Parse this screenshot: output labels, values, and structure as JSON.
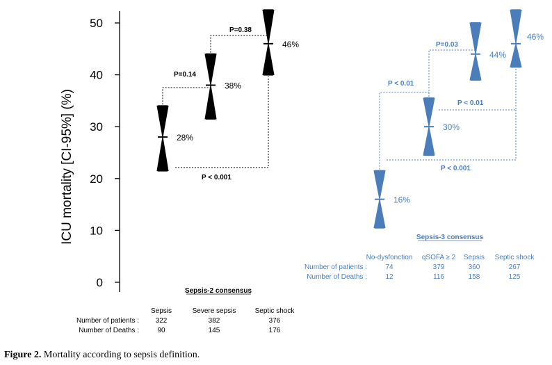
{
  "chart_data": {
    "type": "interval",
    "ylabel": "ICU mortality [CI-95%] (%)",
    "ylim": [
      0,
      50
    ],
    "yticks": [
      0,
      10,
      20,
      30,
      40,
      50
    ],
    "panels": [
      {
        "title": "Sepsis-2 consensus",
        "color": "#000000",
        "table_row_labels": [
          "Number of patients :",
          "Number of Deaths :"
        ],
        "groups": [
          {
            "name": "Sepsis",
            "point": 28,
            "label": "28%",
            "ci": [
              21.5,
              34
            ],
            "patients": "322",
            "deaths": "90"
          },
          {
            "name": "Severe sepsis",
            "point": 38,
            "label": "38%",
            "ci": [
              31.5,
              44
            ],
            "patients": "382",
            "deaths": "145"
          },
          {
            "name": "Septic shock",
            "point": 46,
            "label": "46%",
            "ci": [
              40,
              52.5
            ],
            "patients": "376",
            "deaths": "176"
          }
        ],
        "comparisons": [
          {
            "text": "P=0.14",
            "from": "Sepsis",
            "to": "Severe sepsis"
          },
          {
            "text": "P=0.38",
            "from": "Severe sepsis",
            "to": "Septic shock"
          },
          {
            "text": "P < 0.001",
            "from": "Sepsis",
            "to": "Septic shock"
          }
        ]
      },
      {
        "title": "Sepsis-3 consensus",
        "color": "#4A7DBA",
        "table_row_labels": [
          "Number of patients :",
          "Number of Deaths :"
        ],
        "groups": [
          {
            "name": "No-dysfonction",
            "point": 16,
            "label": "16%",
            "ci": [
              10.5,
              21.5
            ],
            "patients": "74",
            "deaths": "12"
          },
          {
            "name": "qSOFA ≥ 2",
            "point": 30,
            "label": "30%",
            "ci": [
              24.5,
              35.5
            ],
            "patients": "379",
            "deaths": "116"
          },
          {
            "name": "Sepsis",
            "point": 44,
            "label": "44%",
            "ci": [
              39,
              50
            ],
            "patients": "360",
            "deaths": "158"
          },
          {
            "name": "Septic shock",
            "point": 46,
            "label": "46%",
            "ci": [
              41.5,
              52.5
            ],
            "patients": "267",
            "deaths": "125"
          }
        ],
        "comparisons": [
          {
            "text": "P < 0.01",
            "from": "No-dysfonction",
            "to": "qSOFA ≥ 2"
          },
          {
            "text": "P=0.03",
            "from": "qSOFA ≥ 2",
            "to": "Sepsis"
          },
          {
            "text": "P < 0.01",
            "from": "qSOFA ≥ 2",
            "to": "Septic shock"
          },
          {
            "text": "P < 0.001",
            "from": "No-dysfonction",
            "to": "Septic shock"
          }
        ]
      }
    ]
  },
  "caption": {
    "label": "Figure 2.",
    "text": "Mortality according to sepsis definition."
  }
}
